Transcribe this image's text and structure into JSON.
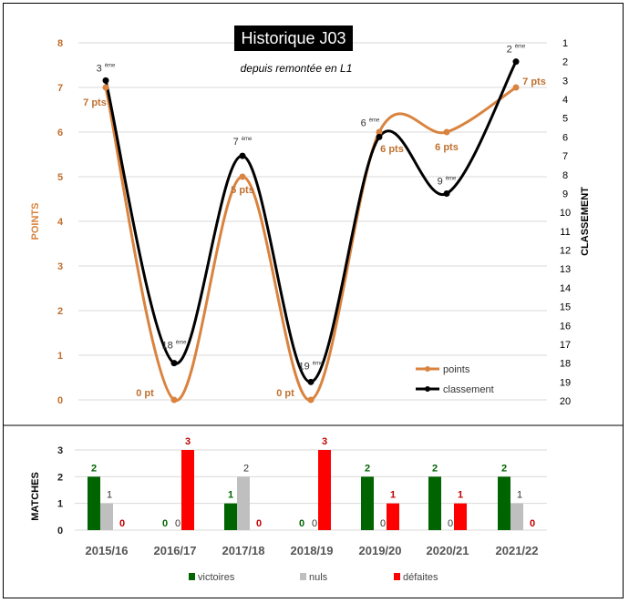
{
  "chart_data": [
    {
      "type": "line",
      "title": "Historique J03",
      "subtitle": "depuis remontée en L1",
      "categories": [
        "2015/16",
        "2016/17",
        "2017/18",
        "2018/19",
        "2019/20",
        "2020/21",
        "2021/22"
      ],
      "ylabel": "POINTS",
      "y2label": "CLASSEMENT",
      "ylim": [
        0,
        8
      ],
      "yticks": [
        "0",
        "1",
        "2",
        "3",
        "4",
        "5",
        "6",
        "7",
        "8"
      ],
      "y2lim": [
        1,
        20
      ],
      "y2ticks": [
        "1",
        "2",
        "3",
        "4",
        "5",
        "6",
        "7",
        "8",
        "9",
        "10",
        "11",
        "12",
        "13",
        "14",
        "15",
        "16",
        "17",
        "18",
        "19",
        "20"
      ],
      "series": [
        {
          "name": "points",
          "values": [
            7,
            0,
            5,
            0,
            6,
            6,
            7
          ],
          "labels": [
            "7 pts",
            "0 pt",
            "5 pts",
            "0 pt",
            "6 pts",
            "6 pts",
            "7 pts"
          ],
          "color": "#D9833F"
        },
        {
          "name": "classement",
          "values": [
            3,
            18,
            7,
            19,
            6,
            9,
            2
          ],
          "labels": [
            "3",
            "18",
            "7",
            "19",
            "6",
            "9",
            "2"
          ],
          "suffix": "ème",
          "color": "#000000"
        }
      ],
      "legend": "bottom-right",
      "grid": true
    },
    {
      "type": "bar",
      "categories": [
        "2015/16",
        "2016/17",
        "2017/18",
        "2018/19",
        "2019/20",
        "2020/21",
        "2021/22"
      ],
      "ylabel": "MATCHES",
      "ylim": [
        0,
        3
      ],
      "yticks": [
        "0",
        "1",
        "2",
        "3"
      ],
      "series": [
        {
          "name": "victoires",
          "values": [
            2,
            0,
            1,
            0,
            2,
            2,
            2
          ],
          "color": "#006400"
        },
        {
          "name": "nuls",
          "values": [
            1,
            0,
            2,
            0,
            0,
            0,
            1
          ],
          "color": "#BFBFBF"
        },
        {
          "name": "défaites",
          "values": [
            0,
            3,
            0,
            3,
            1,
            1,
            0
          ],
          "color": "#FF0000"
        }
      ],
      "legend": "bottom",
      "grid": true
    }
  ]
}
